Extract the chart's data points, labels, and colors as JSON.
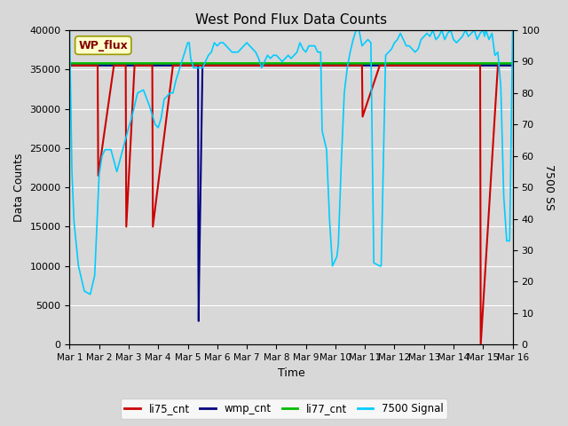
{
  "title": "West Pond Flux Data Counts",
  "xlabel": "Time",
  "ylabel_left": "Data Counts",
  "ylabel_right": "7500 SS",
  "annotation": "WP_flux",
  "ylim_left": [
    0,
    40000
  ],
  "ylim_right": [
    0,
    100
  ],
  "yticks_left": [
    0,
    5000,
    10000,
    15000,
    20000,
    25000,
    30000,
    35000,
    40000
  ],
  "yticks_right": [
    0,
    10,
    20,
    30,
    40,
    50,
    60,
    70,
    80,
    90,
    100
  ],
  "xtick_labels": [
    "Mar 1",
    "Mar 2",
    "Mar 3",
    "Mar 4",
    "Mar 5",
    "Mar 6",
    "Mar 7",
    "Mar 8",
    "Mar 9",
    "Mar 10",
    "Mar 11",
    "Mar 12",
    "Mar 13",
    "Mar 14",
    "Mar 15",
    "Mar 16"
  ],
  "xtick_positions": [
    0,
    1,
    2,
    3,
    4,
    5,
    6,
    7,
    8,
    9,
    10,
    11,
    12,
    13,
    14,
    15
  ],
  "fig_bg_color": "#d8d8d8",
  "plot_bg_color": "#d8d8d8",
  "li77_cnt_value": 35800,
  "li77_color": "#00bb00",
  "li75_color": "#cc0000",
  "wmp_color": "#000080",
  "cyan_color": "#00ccff",
  "legend_labels": [
    "li75_cnt",
    "wmp_cnt",
    "li77_cnt",
    "7500 Signal"
  ],
  "li75_x": [
    0.0,
    0.02,
    0.5,
    0.95,
    0.97,
    1.5,
    1.9,
    1.92,
    2.2,
    2.8,
    2.82,
    3.5,
    3.85,
    3.87,
    3.95,
    3.97,
    4.05,
    4.07,
    4.15,
    4.17,
    4.35,
    4.37,
    5.5,
    8.5,
    9.9,
    9.92,
    10.5,
    11.5,
    13.5,
    13.9,
    13.92,
    14.5
  ],
  "li75_y": [
    35500,
    35500,
    35500,
    35500,
    21500,
    35500,
    35500,
    15000,
    35500,
    35500,
    15000,
    35500,
    35500,
    35500,
    35500,
    35500,
    35500,
    35500,
    35500,
    35500,
    35500,
    35500,
    35500,
    35500,
    35500,
    29000,
    35500,
    35500,
    35500,
    35500,
    0,
    35500
  ],
  "wmp_x": [
    0.0,
    4.35,
    4.36,
    4.37,
    4.38,
    4.5,
    15.0
  ],
  "wmp_y": [
    35500,
    35500,
    10000,
    3000,
    7000,
    35500,
    35500
  ],
  "signal7500_x": [
    0.0,
    0.08,
    0.15,
    0.3,
    0.5,
    0.7,
    0.85,
    1.0,
    1.1,
    1.2,
    1.4,
    1.6,
    1.8,
    2.0,
    2.1,
    2.3,
    2.5,
    2.7,
    2.9,
    3.0,
    3.1,
    3.2,
    3.4,
    3.5,
    3.6,
    3.8,
    4.0,
    4.05,
    4.1,
    4.2,
    4.3,
    4.5,
    4.6,
    4.7,
    4.8,
    4.9,
    5.0,
    5.1,
    5.2,
    5.3,
    5.5,
    5.7,
    5.9,
    6.0,
    6.1,
    6.2,
    6.3,
    6.4,
    6.5,
    6.7,
    6.8,
    6.9,
    7.0,
    7.1,
    7.2,
    7.3,
    7.4,
    7.5,
    7.6,
    7.7,
    7.8,
    7.9,
    8.0,
    8.1,
    8.2,
    8.3,
    8.4,
    8.5,
    8.55,
    8.7,
    8.8,
    8.9,
    9.0,
    9.05,
    9.1,
    9.2,
    9.3,
    9.4,
    9.5,
    9.6,
    9.7,
    9.8,
    9.9,
    10.0,
    10.1,
    10.2,
    10.3,
    10.5,
    10.55,
    10.7,
    10.8,
    10.9,
    11.0,
    11.1,
    11.2,
    11.3,
    11.4,
    11.5,
    11.6,
    11.7,
    11.8,
    11.9,
    12.0,
    12.1,
    12.2,
    12.3,
    12.4,
    12.5,
    12.6,
    12.7,
    12.8,
    12.9,
    13.0,
    13.1,
    13.2,
    13.3,
    13.4,
    13.5,
    13.6,
    13.7,
    13.8,
    13.9,
    14.0,
    14.05,
    14.1,
    14.2,
    14.3,
    14.4,
    14.5,
    14.6,
    14.7,
    14.8,
    14.9,
    15.0
  ],
  "signal7500_y": [
    100,
    55,
    39,
    25,
    17,
    16,
    22,
    54,
    60,
    62,
    62,
    55,
    62,
    69,
    72,
    80,
    81,
    76,
    70,
    69,
    72,
    78,
    80,
    80,
    84,
    90,
    96,
    96,
    91,
    88,
    88,
    88,
    90,
    92,
    93,
    96,
    95,
    96,
    96,
    95,
    93,
    93,
    95,
    96,
    95,
    94,
    93,
    91,
    88,
    92,
    91,
    92,
    92,
    91,
    90,
    91,
    92,
    91,
    92,
    93,
    96,
    94,
    93,
    95,
    95,
    95,
    93,
    93,
    68,
    62,
    40,
    25,
    27,
    28,
    32,
    58,
    80,
    88,
    93,
    97,
    100,
    100,
    95,
    96,
    97,
    96,
    26,
    25,
    25,
    92,
    93,
    94,
    96,
    97,
    99,
    97,
    95,
    95,
    94,
    93,
    94,
    97,
    98,
    99,
    98,
    100,
    97,
    98,
    100,
    97,
    99,
    100,
    97,
    96,
    97,
    98,
    100,
    98,
    99,
    100,
    97,
    99,
    100,
    98,
    100,
    97,
    99,
    92,
    93,
    82,
    47,
    33,
    33,
    100
  ]
}
